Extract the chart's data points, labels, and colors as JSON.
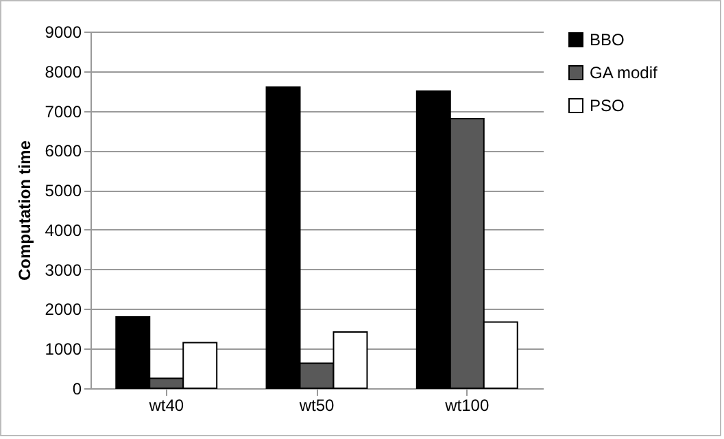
{
  "chart_data": {
    "type": "bar",
    "ylabel": "Computation time",
    "categories": [
      "wt40",
      "wt50",
      "wt100"
    ],
    "series": [
      {
        "name": "BBO",
        "color": "#000000",
        "values": [
          1800,
          7600,
          7500
        ]
      },
      {
        "name": "GA modif",
        "color": "#595959",
        "values": [
          250,
          630,
          6800
        ]
      },
      {
        "name": "PSO",
        "color": "#ffffff",
        "values": [
          1150,
          1420,
          1670
        ]
      }
    ],
    "ylim": [
      0,
      9000
    ],
    "yticks": [
      0,
      1000,
      2000,
      3000,
      4000,
      5000,
      6000,
      7000,
      8000,
      9000
    ],
    "grid": "y",
    "legend": "right"
  }
}
